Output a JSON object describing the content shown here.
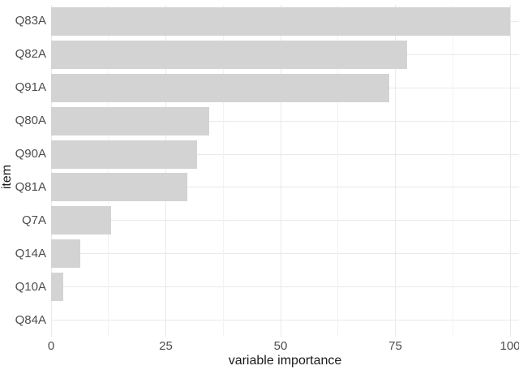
{
  "chart_data": {
    "type": "bar",
    "orientation": "horizontal",
    "title": "",
    "xlabel": "variable importance",
    "ylabel": "item",
    "categories": [
      "Q83A",
      "Q82A",
      "Q91A",
      "Q80A",
      "Q90A",
      "Q81A",
      "Q7A",
      "Q14A",
      "Q10A",
      "Q84A"
    ],
    "values": [
      100,
      77.6,
      73.7,
      34.5,
      31.8,
      29.7,
      13.1,
      6.4,
      2.7,
      0
    ],
    "xlim": [
      0,
      100
    ],
    "x_major_ticks": [
      0,
      25,
      50,
      75,
      100
    ],
    "x_minor_ticks": [
      12.5,
      37.5,
      62.5,
      87.5
    ],
    "x_tick_labels": [
      "0",
      "25",
      "50",
      "75",
      "100"
    ],
    "grid": true,
    "legend": "none",
    "colors": {
      "bar": "#d3d3d3",
      "grid_major": "#e9e9e9",
      "grid_minor": "#f3f3f3",
      "tick_label": "#4d4d4d",
      "axis_title": "#1a1a1a",
      "background": "#ffffff"
    }
  }
}
